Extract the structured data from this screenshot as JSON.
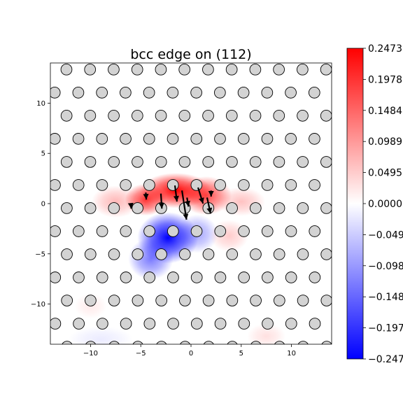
{
  "chart_data": {
    "type": "heatmap",
    "title": "bcc edge on (112)",
    "xlabel": "",
    "ylabel": "",
    "xlim": [
      -14,
      14
    ],
    "ylim": [
      -14,
      14
    ],
    "x_ticks": [
      -10,
      -5,
      0,
      5,
      10
    ],
    "y_ticks": [
      -10,
      -5,
      0,
      5,
      10
    ],
    "tick_labels_x": [
      "−10",
      "−5",
      "0",
      "5",
      "10"
    ],
    "tick_labels_y": [
      "−10",
      "−5",
      "0",
      "5",
      "10"
    ],
    "colormap": "bwr",
    "colors": {
      "low": "#0000ff",
      "mid": "#ffffff",
      "high": "#ff0000",
      "atom_fill": "#d3d3d3",
      "atom_edge": "#000000"
    },
    "colorbar": {
      "min": -0.2473,
      "max": 0.2473,
      "tick_values": [
        0.2473,
        0.1978,
        0.1484,
        0.0989,
        0.0495,
        0.0,
        -0.0495,
        -0.0989,
        -0.1484,
        -0.1978,
        -0.2473
      ],
      "tick_labels": [
        "0.2473",
        "0.1978",
        "0.1484",
        "0.0989",
        "0.0495",
        "0.0000",
        "−0.0495",
        "−0.0989",
        "−0.1484",
        "−0.1978",
        "−0.2473"
      ]
    },
    "field_blobs": [
      {
        "x": -1.5,
        "y": 1.3,
        "amp": 0.2473,
        "sx": 2.2,
        "sy": 1.1
      },
      {
        "x": -4.5,
        "y": 0.4,
        "amp": 0.2,
        "sx": 1.3,
        "sy": 1.0
      },
      {
        "x": 1.5,
        "y": 0.8,
        "amp": 0.18,
        "sx": 1.6,
        "sy": 1.2
      },
      {
        "x": -7.5,
        "y": 0.2,
        "amp": 0.07,
        "sx": 1.5,
        "sy": 1.0
      },
      {
        "x": 5.0,
        "y": 0.2,
        "amp": 0.06,
        "sx": 1.5,
        "sy": 0.9
      },
      {
        "x": -2.3,
        "y": -3.4,
        "amp": -0.2473,
        "sx": 1.9,
        "sy": 1.6
      },
      {
        "x": -4.0,
        "y": -5.5,
        "amp": -0.13,
        "sx": 1.4,
        "sy": 1.3
      },
      {
        "x": 0.6,
        "y": -3.0,
        "amp": -0.09,
        "sx": 1.3,
        "sy": 1.2
      },
      {
        "x": 3.8,
        "y": -3.2,
        "amp": 0.05,
        "sx": 1.2,
        "sy": 1.0
      },
      {
        "x": -10.0,
        "y": -10.2,
        "amp": 0.02,
        "sx": 1.0,
        "sy": 0.8
      },
      {
        "x": 7.5,
        "y": -13.2,
        "amp": 0.03,
        "sx": 1.2,
        "sy": 0.8
      },
      {
        "x": -9.0,
        "y": -13.5,
        "amp": -0.02,
        "sx": 2.0,
        "sy": 0.8
      }
    ],
    "lattice": {
      "a1": [
        2.35,
        0.0
      ],
      "a2": [
        -1.18,
        2.3
      ],
      "origin": [
        -1.8,
        1.85
      ],
      "atom_radius": 0.55
    },
    "arrows": [
      {
        "x": -1.6,
        "y": 1.8,
        "dx": 0.2,
        "dy": -1.6
      },
      {
        "x": -0.9,
        "y": 1.3,
        "dx": 0.45,
        "dy": -2.9
      },
      {
        "x": -3.0,
        "y": 1.0,
        "dx": 0.1,
        "dy": -1.5
      },
      {
        "x": 0.7,
        "y": 1.6,
        "dx": 0.5,
        "dy": -1.6
      },
      {
        "x": 1.6,
        "y": 0.6,
        "dx": 0.35,
        "dy": -1.6
      },
      {
        "x": -4.5,
        "y": 1.1,
        "dx": 0.05,
        "dy": -0.7
      },
      {
        "x": -0.4,
        "y": 0.6,
        "dx": 0.15,
        "dy": -0.9
      },
      {
        "x": 2.0,
        "y": 1.3,
        "dx": 0.0,
        "dy": -0.6
      },
      {
        "x": -6.0,
        "y": 0.0,
        "dx": 0.05,
        "dy": -0.5
      }
    ]
  }
}
